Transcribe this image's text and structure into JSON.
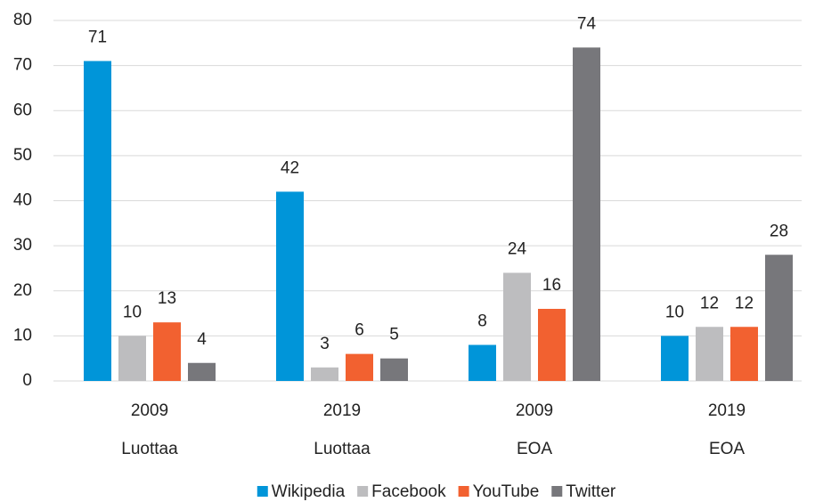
{
  "chart_data": {
    "type": "bar",
    "categories": [
      "2009",
      "2019",
      "2009",
      "2019"
    ],
    "groups": [
      "Luottaa",
      "Luottaa",
      "EOA",
      "EOA"
    ],
    "series": [
      {
        "name": "Wikipedia",
        "color": "#0095d9",
        "values": [
          71,
          42,
          8,
          10
        ]
      },
      {
        "name": "Facebook",
        "color": "#bdbdbf",
        "values": [
          10,
          3,
          24,
          12
        ]
      },
      {
        "name": "YouTube",
        "color": "#f26130",
        "values": [
          13,
          6,
          16,
          12
        ]
      },
      {
        "name": "Twitter",
        "color": "#77777b",
        "values": [
          4,
          5,
          74,
          28
        ]
      }
    ],
    "ylim": [
      0,
      80
    ],
    "yticks": [
      0,
      10,
      20,
      30,
      40,
      50,
      60,
      70,
      80
    ],
    "grid": true,
    "legend": "bottom"
  }
}
